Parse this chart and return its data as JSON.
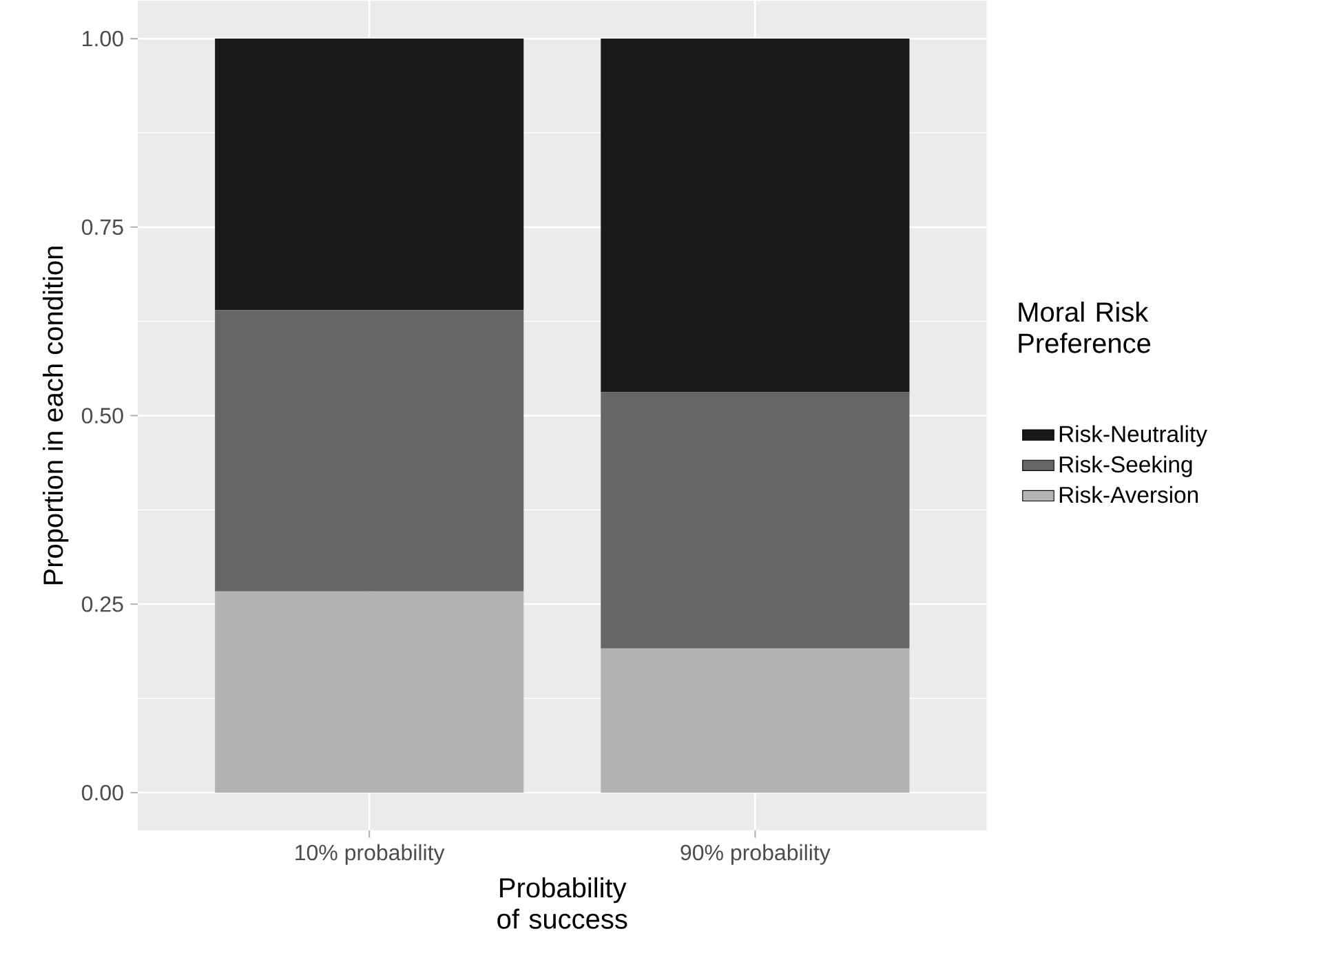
{
  "chart_data": {
    "type": "bar",
    "stacked": true,
    "categories": [
      "10% probability",
      "90% probability"
    ],
    "series": [
      {
        "name": "Risk-Aversion",
        "color": "#b3b3b3",
        "values": [
          0.267,
          0.191
        ]
      },
      {
        "name": "Risk-Seeking",
        "color": "#666666",
        "values": [
          0.373,
          0.34
        ]
      },
      {
        "name": "Risk-Neutrality",
        "color": "#1a1a1a",
        "values": [
          0.36,
          0.469
        ]
      }
    ],
    "xlabel": "Probability of success",
    "ylabel": "Proportion in each condition",
    "legend_title": "Moral Risk Preference",
    "ylim": [
      -0.05,
      1.05
    ],
    "yticks": [
      {
        "value": 0,
        "label": "0.00"
      },
      {
        "value": 0.25,
        "label": "0.25"
      },
      {
        "value": 0.5,
        "label": "0.50"
      },
      {
        "value": 0.75,
        "label": "0.75"
      },
      {
        "value": 1,
        "label": "1.00"
      }
    ],
    "grid": true,
    "legend": "right"
  }
}
